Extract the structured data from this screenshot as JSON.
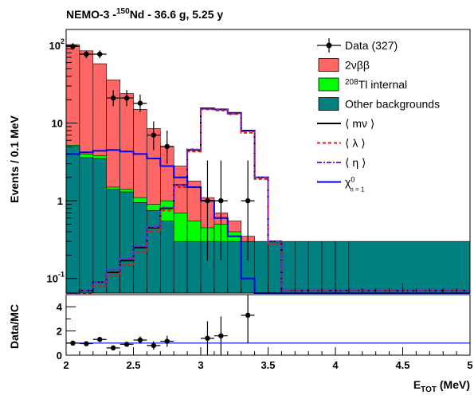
{
  "chart_data": [
    {
      "type": "histogram",
      "title": {
        "main": "NEMO-3 -",
        "sup": "150",
        "rest": "Nd - 36.6 g, 5.25 y"
      },
      "xlim": [
        2.0,
        5.0
      ],
      "ylim": [
        0.065,
        160
      ],
      "log_y": true,
      "ylabel": "Events / 0.1 MeV",
      "y_ticks": [
        {
          "v": 0.1,
          "base": "10",
          "exp": "-1"
        },
        {
          "v": 1,
          "base": "1",
          "exp": ""
        },
        {
          "v": 10,
          "base": "10",
          "exp": ""
        },
        {
          "v": 100,
          "base": "10",
          "exp": "2"
        }
      ],
      "bin_edges": [
        2.0,
        2.1,
        2.2,
        2.3,
        2.4,
        2.5,
        2.6,
        2.7,
        2.8,
        2.9,
        3.0,
        3.1,
        3.2,
        3.3,
        3.4,
        3.5,
        3.6,
        3.7,
        3.8,
        3.9,
        4.0,
        4.1,
        5.0
      ],
      "series": [
        {
          "name": "Other backgrounds",
          "color": "#008080",
          "values": [
            5.0,
            3.6,
            3.5,
            1.4,
            1.3,
            0.95,
            0.75,
            0.55,
            0.3,
            0.3,
            0.3,
            0.3,
            0.3,
            0.3,
            0.3,
            0.3,
            0.3,
            0.3,
            0.3,
            0.3,
            0.3,
            0.3
          ]
        },
        {
          "name": "208Tl internal",
          "color": "#00ff00",
          "values": [
            5.2,
            4.0,
            3.8,
            1.5,
            1.4,
            1.1,
            0.9,
            1.0,
            0.7,
            0.55,
            0.45,
            0.5,
            0.4,
            0.25,
            0.15,
            0.1,
            0.1,
            0.08,
            0.08,
            0.05,
            0.05,
            0.05
          ]
        },
        {
          "name": "2νββ",
          "color": "#ff6666",
          "values": [
            102,
            85,
            58,
            36,
            24,
            15,
            8.5,
            5.0,
            2.8,
            1.8,
            1.1,
            0.7,
            0.55,
            0.35,
            0.25,
            0.15,
            0.1,
            0.08,
            0.08,
            0.05,
            0.05,
            0.05
          ]
        }
      ],
      "signals": [
        {
          "name": "⟨ mν ⟩",
          "color": "#000000",
          "dash": "none",
          "values": [
            0.06,
            0.07,
            0.09,
            0.12,
            0.17,
            0.25,
            0.45,
            0.8,
            1.6,
            4.5,
            15.5,
            15.0,
            13.5,
            8.0,
            2.0,
            0.3,
            0.07,
            0.07,
            0.07,
            0.07,
            0.07,
            0.07
          ]
        },
        {
          "name": "⟨ λ ⟩",
          "color": "#ee1111",
          "dash": "4,3",
          "values": [
            0.055,
            0.065,
            0.08,
            0.11,
            0.15,
            0.22,
            0.4,
            0.75,
            1.5,
            4.3,
            15.0,
            14.5,
            13.0,
            7.5,
            1.9,
            0.28,
            0.07,
            0.07,
            0.07,
            0.07,
            0.07,
            0.07
          ]
        },
        {
          "name": "⟨ η ⟩",
          "color": "#7722dd",
          "dash": "6,2,2,2",
          "values": [
            0.06,
            0.07,
            0.09,
            0.13,
            0.18,
            0.26,
            0.46,
            0.82,
            1.6,
            4.6,
            15.2,
            14.8,
            13.2,
            7.8,
            2.0,
            0.3,
            0.07,
            0.07,
            0.07,
            0.07,
            0.07,
            0.07
          ]
        },
        {
          "name": "χ0 n=1",
          "color": "#0000ee",
          "dash": "none",
          "values": [
            4.0,
            4.2,
            4.4,
            4.5,
            4.3,
            4.0,
            3.5,
            2.8,
            2.0,
            1.5,
            1.0,
            0.6,
            0.35,
            0.1,
            0.03,
            0.03,
            0.03,
            0.03,
            0.03,
            0.03,
            0.03,
            0.03
          ]
        }
      ],
      "data_points": [
        {
          "x": 2.05,
          "y": 97,
          "lo": 10,
          "hi": 10
        },
        {
          "x": 2.15,
          "y": 77,
          "lo": 9,
          "hi": 9
        },
        {
          "x": 2.25,
          "y": 77,
          "lo": 9,
          "hi": 9
        },
        {
          "x": 2.35,
          "y": 21,
          "lo": 4.5,
          "hi": 5.5
        },
        {
          "x": 2.45,
          "y": 21,
          "lo": 4.5,
          "hi": 5.5
        },
        {
          "x": 2.55,
          "y": 18,
          "lo": 4.2,
          "hi": 5.2
        },
        {
          "x": 2.65,
          "y": 7,
          "lo": 2.5,
          "hi": 3.5
        },
        {
          "x": 2.75,
          "y": 5,
          "lo": 2.0,
          "hi": 3.0
        },
        {
          "x": 3.05,
          "y": 1,
          "lo": 0.83,
          "hi": 2.3
        },
        {
          "x": 3.15,
          "y": 1,
          "lo": 0.83,
          "hi": 2.3
        },
        {
          "x": 3.35,
          "y": 1,
          "lo": 0.83,
          "hi": 2.3
        }
      ],
      "legend": {
        "placement": "top-right",
        "entries": [
          {
            "label": "Data (327)",
            "kind": "marker",
            "color": "#000000"
          },
          {
            "label": "2νββ",
            "kind": "box",
            "color": "#ff6666"
          },
          {
            "label": "Tl internal",
            "sup": "208",
            "kind": "box",
            "color": "#00ff00"
          },
          {
            "label": "Other backgrounds",
            "kind": "box",
            "color": "#008080"
          },
          {
            "label": "⟨ mν ⟩",
            "kind": "line",
            "color": "#000000",
            "dash": "none"
          },
          {
            "label": "⟨ λ ⟩",
            "kind": "line",
            "color": "#ee1111",
            "dash": "4,3"
          },
          {
            "label": "⟨ η ⟩",
            "kind": "line",
            "color": "#7722dd",
            "dash": "6,2,2,2"
          },
          {
            "label": "χ",
            "sup": "0",
            "sub": "n = 1",
            "kind": "line",
            "color": "#0000ee",
            "dash": "none"
          }
        ]
      }
    },
    {
      "type": "scatter",
      "ylabel": "Data/MC",
      "xlim": [
        2.0,
        5.0
      ],
      "ylim": [
        0,
        5
      ],
      "y_ticks": [
        0,
        2,
        4
      ],
      "x_ticks": [
        2,
        2.5,
        3,
        3.5,
        4,
        4.5,
        5
      ],
      "x_tick_labels": [
        "2",
        "2.5",
        "3",
        "3.5",
        "4",
        "4.5",
        "5"
      ],
      "xlabel": {
        "main": "E",
        "sub": "TOT",
        "rest": " (MeV)"
      },
      "reference_line": {
        "y": 1,
        "color": "#0000ee"
      },
      "points": [
        {
          "x": 2.05,
          "y": 1.0,
          "err": 0.12
        },
        {
          "x": 2.15,
          "y": 0.95,
          "err": 0.12
        },
        {
          "x": 2.25,
          "y": 1.3,
          "err": 0.15
        },
        {
          "x": 2.35,
          "y": 0.6,
          "err": 0.15
        },
        {
          "x": 2.45,
          "y": 0.9,
          "err": 0.2
        },
        {
          "x": 2.55,
          "y": 1.25,
          "err": 0.3
        },
        {
          "x": 2.65,
          "y": 0.8,
          "err": 0.35
        },
        {
          "x": 2.75,
          "y": 1.15,
          "err": 0.45
        },
        {
          "x": 3.05,
          "y": 1.4,
          "err": 1.4
        },
        {
          "x": 3.15,
          "y": 1.6,
          "err": 1.6
        },
        {
          "x": 3.35,
          "y": 3.3,
          "err": 2.3
        }
      ]
    }
  ]
}
